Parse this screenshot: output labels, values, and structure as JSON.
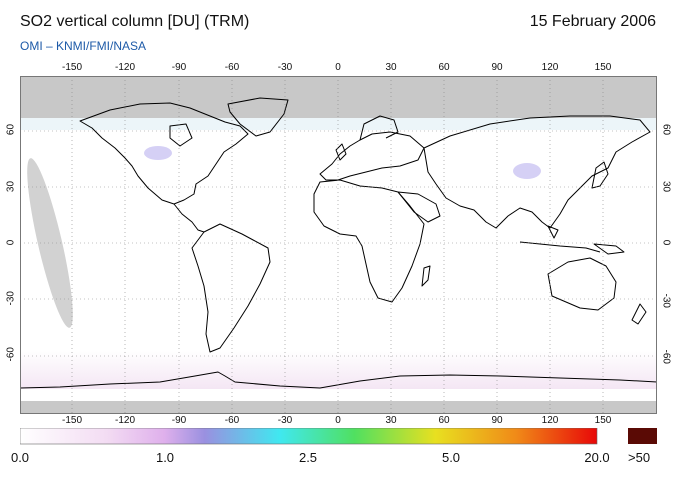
{
  "header": {
    "title": "SO2 vertical column [DU] (TRM)",
    "date": "15 February 2006",
    "credit": "OMI  –  KNMI/FMI/NASA"
  },
  "map": {
    "projection": "equirectangular",
    "lon_ticks_top": [
      "-150",
      "-120",
      "-90",
      "-60",
      "-30",
      "0",
      "30",
      "60",
      "90",
      "120",
      "150"
    ],
    "lon_ticks_bottom": [
      "-150",
      "-120",
      "-90",
      "-60",
      "-30",
      "0",
      "30",
      "60",
      "90",
      "120",
      "150"
    ],
    "lat_ticks_left": [
      "60",
      "30",
      "0",
      "-30",
      "-60"
    ],
    "lat_ticks_right": [
      "60",
      "30",
      "0",
      "-30",
      "-60"
    ],
    "colors": {
      "ocean_land_bg": "#ffffff",
      "no_data_polar": "#c8c8c8",
      "coastline": "#000000",
      "grid": "#888888"
    }
  },
  "colorbar": {
    "labels": [
      "0.0",
      "1.0",
      "2.5",
      "5.0",
      "20.0"
    ],
    "overflow_label": ">50",
    "overflow_color": "#5a0a05",
    "stops": [
      "#ffffff",
      "#f3dcf3",
      "#dfb0ec",
      "#9a90e0",
      "#40e8f0",
      "#50e060",
      "#e8e020",
      "#f08a18",
      "#e80808"
    ]
  }
}
